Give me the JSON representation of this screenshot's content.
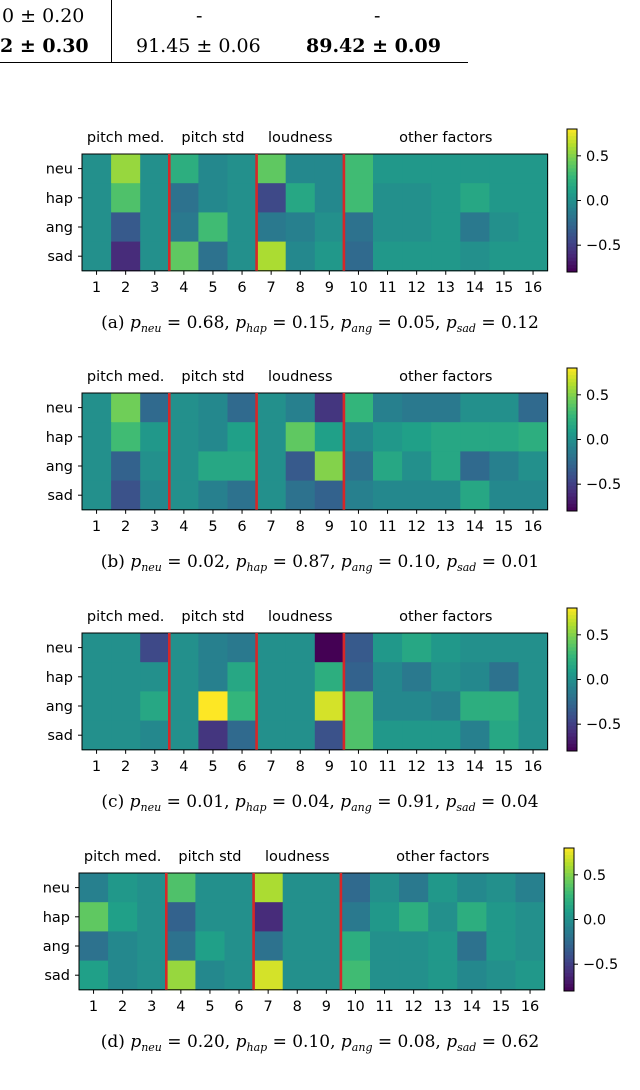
{
  "table": {
    "row1": [
      "0 ± 0.20",
      "-",
      "-"
    ],
    "row2": [
      "2 ± 0.30",
      "91.45 ± 0.06",
      "89.42 ± 0.09"
    ]
  },
  "figure": {
    "group_labels": [
      "pitch med.",
      "pitch std",
      "loudness",
      "other factors"
    ],
    "row_labels": [
      "neu",
      "hap",
      "ang",
      "sad"
    ],
    "col_labels": [
      "1",
      "2",
      "3",
      "4",
      "5",
      "6",
      "7",
      "8",
      "9",
      "10",
      "11",
      "12",
      "13",
      "14",
      "15",
      "16"
    ],
    "colorbar_ticks": [
      "0.5",
      "0.0",
      "−0.5"
    ],
    "separator_color": "#d62728"
  },
  "chart_data": [
    {
      "type": "heatmap",
      "caption_tag": "(a)",
      "caption_terms": [
        {
          "sub": "neu",
          "val": "0.68"
        },
        {
          "sub": "hap",
          "val": "0.15"
        },
        {
          "sub": "ang",
          "val": "0.05"
        },
        {
          "sub": "sad",
          "val": "0.12"
        }
      ],
      "clim": [
        -0.8,
        0.8
      ],
      "values": [
        [
          0.0,
          0.55,
          0.0,
          0.2,
          -0.05,
          0.0,
          0.4,
          -0.05,
          -0.05,
          0.3,
          0.05,
          0.05,
          0.05,
          0.05,
          0.05,
          0.05
        ],
        [
          0.0,
          0.35,
          0.0,
          -0.2,
          -0.05,
          0.0,
          -0.45,
          0.15,
          -0.05,
          0.3,
          0.0,
          0.0,
          0.05,
          0.15,
          0.05,
          0.05
        ],
        [
          0.0,
          -0.35,
          0.0,
          -0.15,
          0.3,
          0.0,
          -0.15,
          -0.1,
          0.0,
          -0.2,
          0.0,
          0.0,
          0.05,
          -0.15,
          0.0,
          0.05
        ],
        [
          0.0,
          -0.6,
          0.0,
          0.4,
          -0.2,
          0.0,
          0.6,
          -0.05,
          0.05,
          -0.25,
          0.05,
          0.05,
          0.05,
          0.0,
          0.05,
          0.05
        ]
      ]
    },
    {
      "type": "heatmap",
      "caption_tag": "(b)",
      "caption_terms": [
        {
          "sub": "neu",
          "val": "0.02"
        },
        {
          "sub": "hap",
          "val": "0.87"
        },
        {
          "sub": "ang",
          "val": "0.10"
        },
        {
          "sub": "sad",
          "val": "0.01"
        }
      ],
      "clim": [
        -0.8,
        0.8
      ],
      "values": [
        [
          0.0,
          0.45,
          -0.25,
          0.0,
          -0.05,
          -0.25,
          0.0,
          -0.1,
          -0.55,
          0.25,
          -0.1,
          -0.15,
          -0.15,
          0.0,
          0.0,
          -0.25
        ],
        [
          0.0,
          0.3,
          0.05,
          0.0,
          -0.05,
          0.1,
          0.0,
          0.4,
          0.1,
          -0.05,
          0.05,
          0.1,
          0.15,
          0.15,
          0.15,
          0.2
        ],
        [
          0.0,
          -0.3,
          0.0,
          0.0,
          0.15,
          0.15,
          0.0,
          -0.35,
          0.5,
          -0.2,
          0.15,
          0.0,
          0.15,
          -0.25,
          -0.1,
          0.0
        ],
        [
          0.0,
          -0.4,
          -0.05,
          0.0,
          -0.1,
          -0.2,
          0.0,
          -0.2,
          -0.3,
          -0.1,
          -0.05,
          -0.05,
          -0.05,
          0.15,
          -0.05,
          -0.05
        ]
      ]
    },
    {
      "type": "heatmap",
      "caption_tag": "(c)",
      "caption_terms": [
        {
          "sub": "neu",
          "val": "0.01"
        },
        {
          "sub": "hap",
          "val": "0.04"
        },
        {
          "sub": "ang",
          "val": "0.91"
        },
        {
          "sub": "sad",
          "val": "0.04"
        }
      ],
      "clim": [
        -0.8,
        0.8
      ],
      "values": [
        [
          0.0,
          0.0,
          -0.45,
          0.0,
          -0.1,
          -0.15,
          0.0,
          0.0,
          -0.8,
          -0.35,
          0.05,
          0.15,
          0.05,
          0.0,
          0.0,
          0.0
        ],
        [
          0.0,
          0.0,
          0.0,
          0.0,
          -0.1,
          0.15,
          0.0,
          0.0,
          0.2,
          -0.3,
          -0.05,
          -0.15,
          0.0,
          -0.05,
          -0.2,
          0.0
        ],
        [
          0.0,
          0.0,
          0.15,
          0.0,
          0.8,
          0.25,
          0.0,
          0.0,
          0.7,
          0.35,
          -0.05,
          -0.05,
          -0.1,
          0.2,
          0.2,
          0.0
        ],
        [
          0.0,
          0.0,
          -0.05,
          0.0,
          -0.55,
          -0.25,
          0.0,
          0.0,
          -0.4,
          0.35,
          0.05,
          0.05,
          0.05,
          -0.1,
          0.15,
          0.0
        ]
      ]
    },
    {
      "type": "heatmap",
      "caption_tag": "(d)",
      "caption_terms": [
        {
          "sub": "neu",
          "val": "0.20"
        },
        {
          "sub": "hap",
          "val": "0.10"
        },
        {
          "sub": "ang",
          "val": "0.08"
        },
        {
          "sub": "sad",
          "val": "0.62"
        }
      ],
      "clim": [
        -0.8,
        0.8
      ],
      "values": [
        [
          -0.1,
          0.05,
          0.0,
          0.35,
          0.0,
          0.0,
          0.6,
          0.0,
          0.0,
          -0.25,
          0.0,
          -0.15,
          0.05,
          -0.05,
          0.0,
          -0.1
        ],
        [
          0.4,
          0.1,
          0.0,
          -0.3,
          0.0,
          0.0,
          -0.6,
          0.0,
          0.0,
          -0.15,
          0.05,
          0.2,
          0.0,
          0.2,
          0.05,
          0.0
        ],
        [
          -0.2,
          -0.05,
          0.0,
          -0.2,
          0.1,
          0.0,
          -0.2,
          0.0,
          0.0,
          0.2,
          0.0,
          0.0,
          0.05,
          -0.2,
          0.05,
          0.0
        ],
        [
          0.1,
          -0.05,
          0.0,
          0.55,
          -0.05,
          0.0,
          0.7,
          0.0,
          0.0,
          0.3,
          0.0,
          0.0,
          0.05,
          -0.05,
          0.0,
          0.05
        ]
      ]
    }
  ]
}
